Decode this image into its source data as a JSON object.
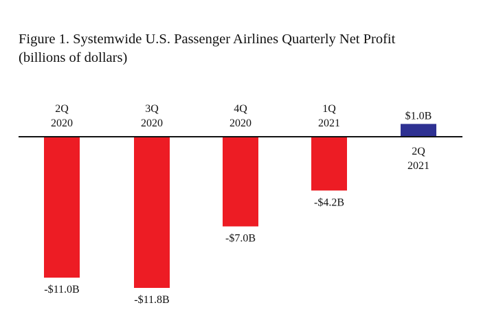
{
  "title": {
    "line1": "Figure 1. Systemwide U.S. Passenger Airlines Quarterly Net Profit",
    "line2": "(billions of dollars)"
  },
  "colors": {
    "negative": "#ed1c24",
    "positive": "#2e3192",
    "axis": "#111111"
  },
  "chart_data": {
    "type": "bar",
    "title": "Figure 1. Systemwide U.S. Passenger Airlines Quarterly Net Profit (billions of dollars)",
    "xlabel": "",
    "ylabel": "",
    "categories": [
      {
        "quarter": "2Q",
        "year": "2020"
      },
      {
        "quarter": "3Q",
        "year": "2020"
      },
      {
        "quarter": "4Q",
        "year": "2020"
      },
      {
        "quarter": "1Q",
        "year": "2021"
      },
      {
        "quarter": "2Q",
        "year": "2021"
      }
    ],
    "values": [
      -11.0,
      -11.8,
      -7.0,
      -4.2,
      1.0
    ],
    "value_labels": [
      "-$11.0B",
      "-$11.8B",
      "-$7.0B",
      "-$4.2B",
      "$1.0B"
    ],
    "ylim": [
      -11.8,
      1.0
    ],
    "grid": false,
    "legend": "none"
  }
}
